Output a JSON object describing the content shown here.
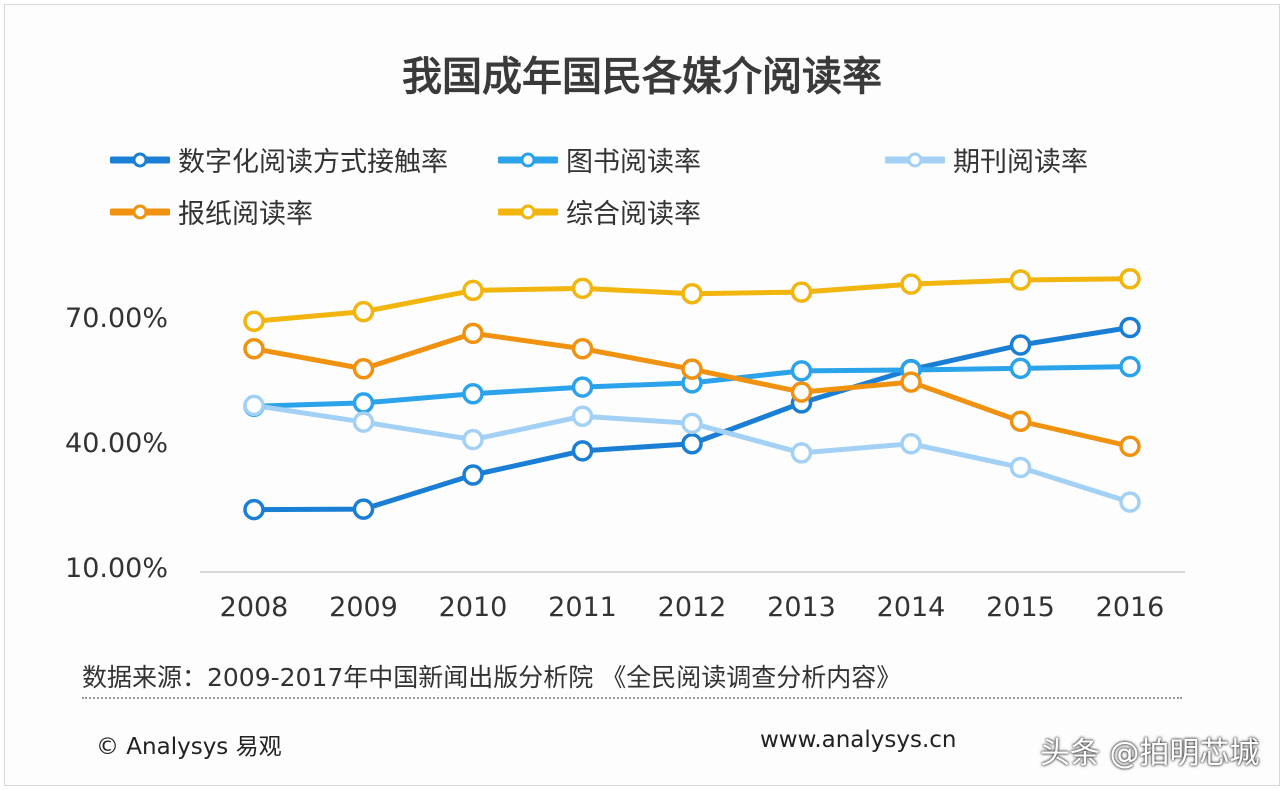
{
  "chart_data": {
    "type": "line",
    "title": "我国成年国民各媒介阅读率",
    "categories": [
      "2008",
      "2009",
      "2010",
      "2011",
      "2012",
      "2013",
      "2014",
      "2015",
      "2016"
    ],
    "yticks": [
      "70.00%",
      "40.00%",
      "10.00%"
    ],
    "ytick_values": [
      70,
      40,
      10
    ],
    "ylim": [
      10,
      85
    ],
    "grid": false,
    "legend_position": "top",
    "series": [
      {
        "name": "数字化阅读方式接触率",
        "color": "#1a7fd4",
        "values": [
          24.5,
          24.6,
          32.8,
          38.6,
          40.3,
          50.1,
          58.1,
          64.0,
          68.2
        ]
      },
      {
        "name": "图书阅读率",
        "color": "#2ba3ea",
        "values": [
          49.3,
          50.1,
          52.3,
          53.9,
          54.9,
          57.8,
          58.0,
          58.4,
          58.8
        ]
      },
      {
        "name": "期刊阅读率",
        "color": "#a3d1f5",
        "values": [
          49.5,
          45.5,
          41.3,
          46.9,
          45.2,
          38.1,
          40.3,
          34.6,
          26.3
        ]
      },
      {
        "name": "报纸阅读率",
        "color": "#f0920f",
        "values": [
          63.1,
          58.3,
          66.8,
          63.1,
          58.2,
          52.7,
          55.1,
          45.7,
          39.7
        ]
      },
      {
        "name": "综合阅读率",
        "color": "#f2b50d",
        "values": [
          69.7,
          72.0,
          77.1,
          77.6,
          76.3,
          76.7,
          78.6,
          79.6,
          79.9
        ]
      }
    ]
  },
  "footer": {
    "source": "数据来源：2009-2017年中国新闻出版分析院 《全民阅读调查分析内容》",
    "copyright": "© Analysys 易观",
    "site": "www.analysys.cn",
    "watermark": "头条 @拍明芯城"
  }
}
